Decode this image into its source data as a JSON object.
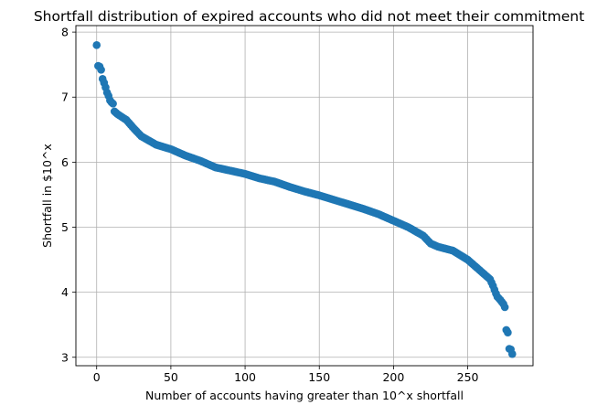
{
  "chart_data": {
    "type": "scatter",
    "title": "Shortfall distribution of expired accounts who did not meet their commitment",
    "xlabel": "Number of accounts having greater than 10^x shortfall",
    "ylabel": "Shortfall in $10^x",
    "xlim": [
      -14,
      294
    ],
    "ylim": [
      2.87,
      8.1
    ],
    "xticks": [
      0,
      50,
      100,
      150,
      200,
      250
    ],
    "yticks": [
      3,
      4,
      5,
      6,
      7,
      8
    ],
    "grid": true,
    "marker_color": "#1f77b4",
    "anchors": [
      [
        0,
        7.8
      ],
      [
        1,
        7.48
      ],
      [
        2,
        7.47
      ],
      [
        3,
        7.42
      ],
      [
        4,
        7.28
      ],
      [
        5,
        7.22
      ],
      [
        6,
        7.15
      ],
      [
        7,
        7.07
      ],
      [
        8,
        7.02
      ],
      [
        9,
        6.95
      ],
      [
        10,
        6.92
      ],
      [
        11,
        6.9
      ],
      [
        12,
        6.78
      ],
      [
        14,
        6.74
      ],
      [
        20,
        6.65
      ],
      [
        25,
        6.52
      ],
      [
        30,
        6.4
      ],
      [
        40,
        6.27
      ],
      [
        50,
        6.2
      ],
      [
        60,
        6.1
      ],
      [
        70,
        6.02
      ],
      [
        80,
        5.92
      ],
      [
        90,
        5.87
      ],
      [
        100,
        5.82
      ],
      [
        110,
        5.75
      ],
      [
        120,
        5.7
      ],
      [
        130,
        5.62
      ],
      [
        140,
        5.55
      ],
      [
        150,
        5.49
      ],
      [
        160,
        5.42
      ],
      [
        170,
        5.35
      ],
      [
        180,
        5.28
      ],
      [
        190,
        5.2
      ],
      [
        200,
        5.1
      ],
      [
        210,
        5.0
      ],
      [
        220,
        4.87
      ],
      [
        225,
        4.75
      ],
      [
        230,
        4.7
      ],
      [
        240,
        4.64
      ],
      [
        250,
        4.5
      ],
      [
        255,
        4.4
      ],
      [
        260,
        4.3
      ],
      [
        265,
        4.2
      ],
      [
        267,
        4.1
      ],
      [
        269,
        3.98
      ],
      [
        270,
        3.93
      ],
      [
        272,
        3.88
      ],
      [
        274,
        3.82
      ],
      [
        275,
        3.77
      ],
      [
        276,
        3.42
      ],
      [
        277,
        3.38
      ],
      [
        278,
        3.13
      ],
      [
        279,
        3.12
      ],
      [
        280,
        3.05
      ]
    ]
  }
}
